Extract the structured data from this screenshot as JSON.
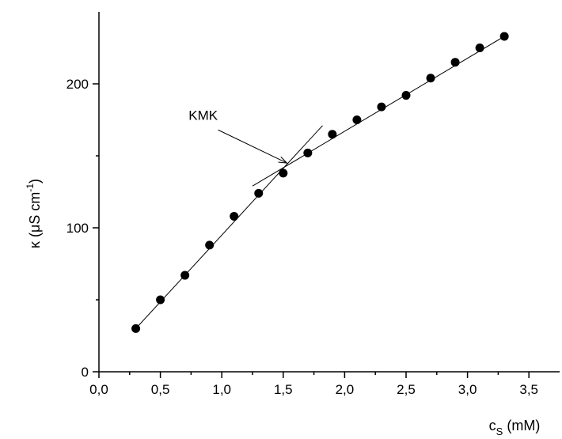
{
  "chart_data": {
    "type": "scatter",
    "title": "",
    "xlabel_main": "c",
    "xlabel_sub": "S",
    "xlabel_unit": " (mM)",
    "ylabel_pre": "κ (μS cm",
    "ylabel_sup": "-1",
    "ylabel_post": ")",
    "xlim": [
      0.0,
      3.75
    ],
    "ylim": [
      0,
      250
    ],
    "x_ticks": [
      0.0,
      0.5,
      1.0,
      1.5,
      2.0,
      2.5,
      3.0,
      3.5
    ],
    "x_tick_labels": [
      "0,0",
      "0,5",
      "1,0",
      "1,5",
      "2,0",
      "2,5",
      "3,0",
      "3,5"
    ],
    "y_ticks": [
      0,
      100,
      200
    ],
    "y_tick_labels": [
      "0",
      "100",
      "200"
    ],
    "grid": false,
    "series": [
      {
        "x": [
          0.3,
          0.5,
          0.7,
          0.9,
          1.1,
          1.3,
          1.5,
          1.7,
          1.9,
          2.1,
          2.3,
          2.5,
          2.7,
          2.9,
          3.1,
          3.3
        ],
        "y": [
          30,
          50,
          67,
          88,
          108,
          124,
          138,
          152,
          165,
          175,
          184,
          192,
          204,
          215,
          225,
          233
        ]
      }
    ],
    "fit_lines": [
      {
        "x": [
          0.3,
          1.82
        ],
        "y": [
          30,
          171
        ]
      },
      {
        "x": [
          1.25,
          3.3
        ],
        "y": [
          129,
          233
        ]
      }
    ],
    "annotation": {
      "text": "KMK",
      "text_at": [
        0.73,
        175
      ],
      "arrow_from": [
        0.97,
        168
      ],
      "arrow_to": [
        1.53,
        145
      ]
    }
  }
}
